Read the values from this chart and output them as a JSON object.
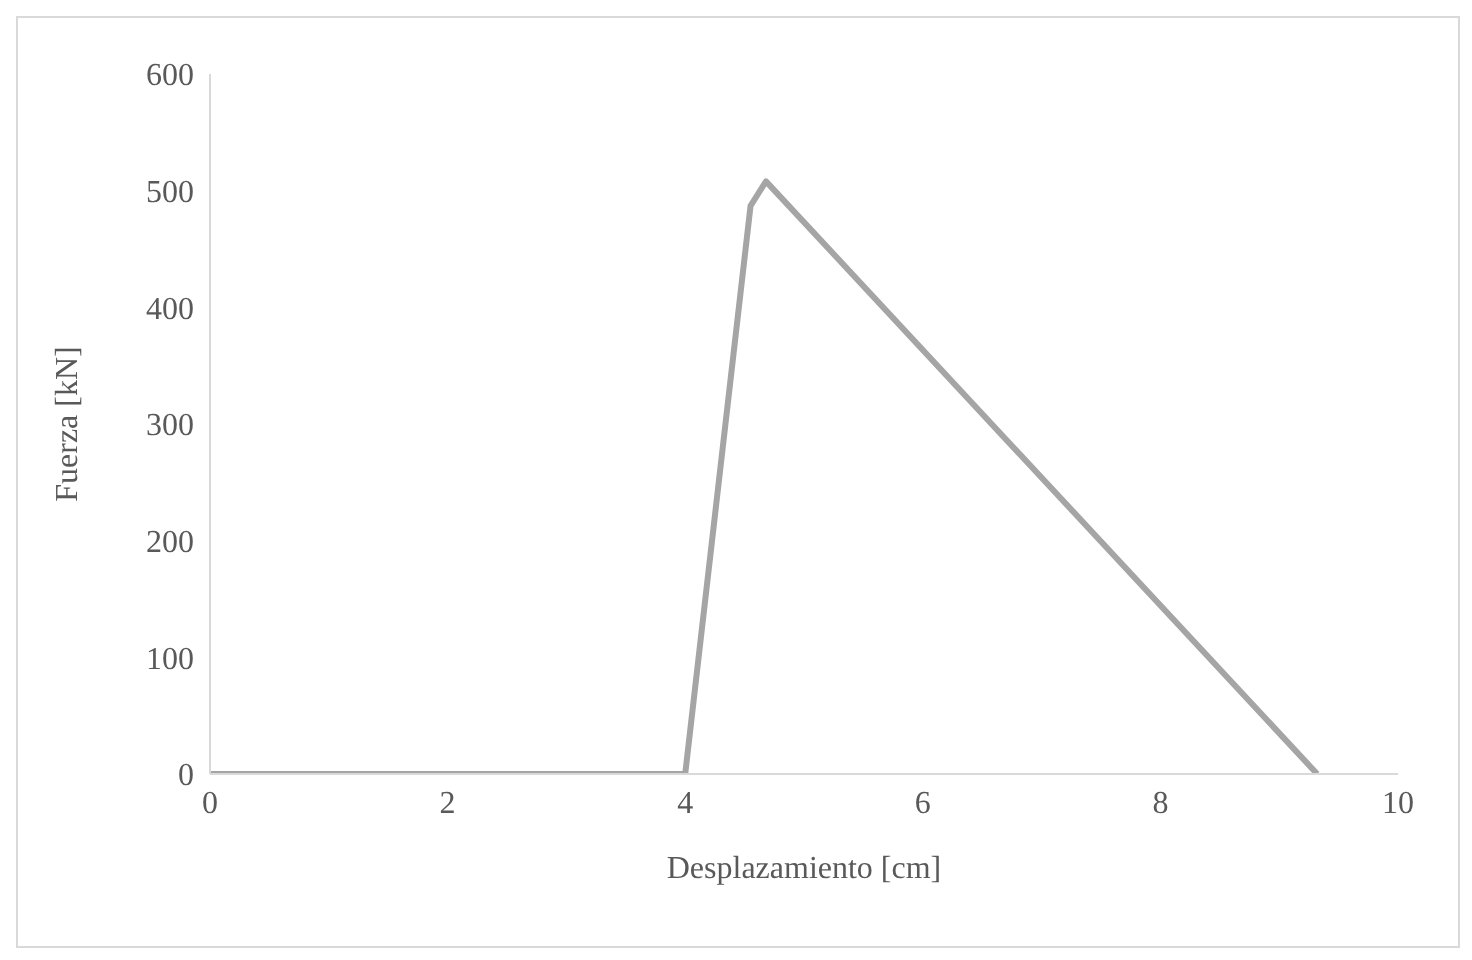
{
  "chart_data": {
    "type": "line",
    "xlabel": "Desplazamiento [cm]",
    "ylabel": "Fuerza [kN]",
    "x": [
      0,
      4,
      4.55,
      4.68,
      9.32
    ],
    "series": [
      {
        "color": "#a5a5a5",
        "values": [
          0,
          0,
          487,
          508,
          0
        ]
      }
    ],
    "xlim": [
      0,
      10
    ],
    "xticks": [
      0,
      2,
      4,
      6,
      8,
      10
    ],
    "ylim": [
      0,
      600
    ],
    "yticks": [
      0,
      100,
      200,
      300,
      400,
      500,
      600
    ],
    "grid": false,
    "legend": false,
    "marker": "none",
    "line_style": "solid"
  }
}
